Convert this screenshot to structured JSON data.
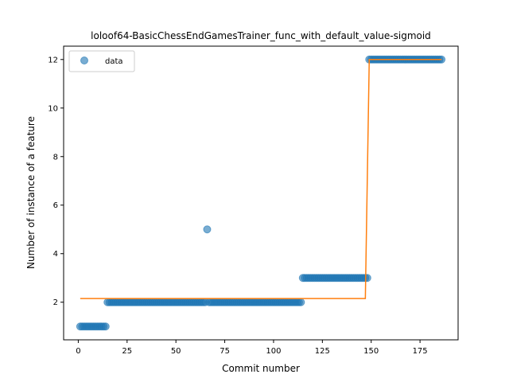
{
  "chart_data": {
    "type": "scatter",
    "title": "loloof64-BasicChessEndGamesTrainer_func_with_default_value-sigmoid",
    "xlabel": "Commit number",
    "ylabel": "Number of instance of a feature",
    "xlim": [
      -7.5,
      194.5
    ],
    "ylim": [
      0.45,
      12.55
    ],
    "xticks": [
      0,
      25,
      50,
      75,
      100,
      125,
      150,
      175
    ],
    "yticks": [
      2,
      4,
      6,
      8,
      10,
      12
    ],
    "legend_position": "upper-left",
    "grid": false,
    "series": [
      {
        "name": "data",
        "kind": "scatter",
        "color": "#1f77b4",
        "segments": [
          {
            "x_start": 1,
            "x_end": 14,
            "y": 1
          },
          {
            "x_start": 15,
            "x_end": 65,
            "y": 2
          },
          {
            "x_start": 67,
            "x_end": 114,
            "y": 2
          },
          {
            "x_start": 115,
            "x_end": 148,
            "y": 3
          },
          {
            "x_start": 149,
            "x_end": 186,
            "y": 12
          }
        ],
        "points": [
          {
            "x": 66,
            "y": 5
          }
        ]
      },
      {
        "name": "",
        "kind": "line",
        "color": "#ff7f0e",
        "x": [
          1,
          147,
          149,
          186
        ],
        "y": [
          2.15,
          2.15,
          12.0,
          12.0
        ]
      }
    ]
  }
}
